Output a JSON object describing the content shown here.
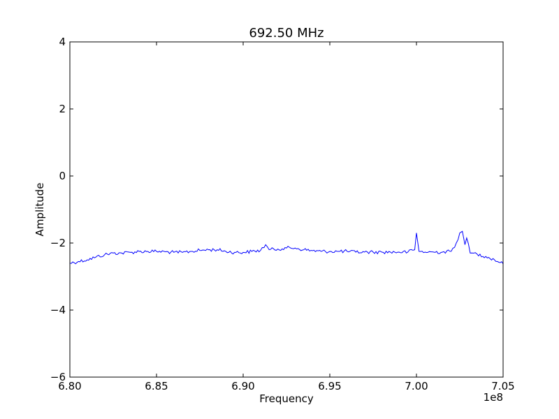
{
  "chart_data": {
    "type": "line",
    "title": "692.50 MHz",
    "xlabel": "Frequency",
    "ylabel": "Amplitude",
    "x_offset_label": "1e8",
    "xlim": [
      680000000,
      705000000
    ],
    "ylim": [
      -6,
      4
    ],
    "x_tick_values": [
      680000000,
      685000000,
      690000000,
      695000000,
      700000000,
      705000000
    ],
    "x_tick_labels": [
      "6.80",
      "6.85",
      "6.90",
      "6.95",
      "7.00",
      "7.05"
    ],
    "y_tick_values": [
      -6,
      -4,
      -2,
      0,
      2,
      4
    ],
    "y_tick_labels": [
      "−6",
      "−4",
      "−2",
      "0",
      "2",
      "4"
    ],
    "grid": false,
    "series": [
      {
        "color": "#0000ff",
        "x": [
          680000000,
          680500000,
          681000000,
          681500000,
          682000000,
          682500000,
          683000000,
          683500000,
          684000000,
          684500000,
          685000000,
          685500000,
          686000000,
          686500000,
          687000000,
          687500000,
          688000000,
          688500000,
          689000000,
          689500000,
          690000000,
          690500000,
          691000000,
          691300000,
          691500000,
          692000000,
          692500000,
          693000000,
          693500000,
          694000000,
          694500000,
          695000000,
          695500000,
          696000000,
          696500000,
          697000000,
          697500000,
          698000000,
          698500000,
          699000000,
          699500000,
          699900000,
          700000000,
          700150000,
          700500000,
          701000000,
          701500000,
          702000000,
          702300000,
          702500000,
          702650000,
          702800000,
          702900000,
          703100000,
          703500000,
          704000000,
          704500000,
          705000000
        ],
        "y": [
          -2.6,
          -2.55,
          -2.5,
          -2.42,
          -2.35,
          -2.3,
          -2.3,
          -2.28,
          -2.25,
          -2.25,
          -2.25,
          -2.26,
          -2.28,
          -2.28,
          -2.25,
          -2.22,
          -2.2,
          -2.2,
          -2.25,
          -2.28,
          -2.28,
          -2.25,
          -2.22,
          -2.05,
          -2.2,
          -2.18,
          -2.15,
          -2.15,
          -2.2,
          -2.23,
          -2.25,
          -2.25,
          -2.25,
          -2.25,
          -2.27,
          -2.27,
          -2.27,
          -2.27,
          -2.27,
          -2.27,
          -2.27,
          -2.2,
          -1.7,
          -2.25,
          -2.27,
          -2.27,
          -2.27,
          -2.25,
          -2.0,
          -1.7,
          -1.65,
          -2.05,
          -1.85,
          -2.3,
          -2.33,
          -2.4,
          -2.5,
          -2.62
        ]
      }
    ]
  }
}
